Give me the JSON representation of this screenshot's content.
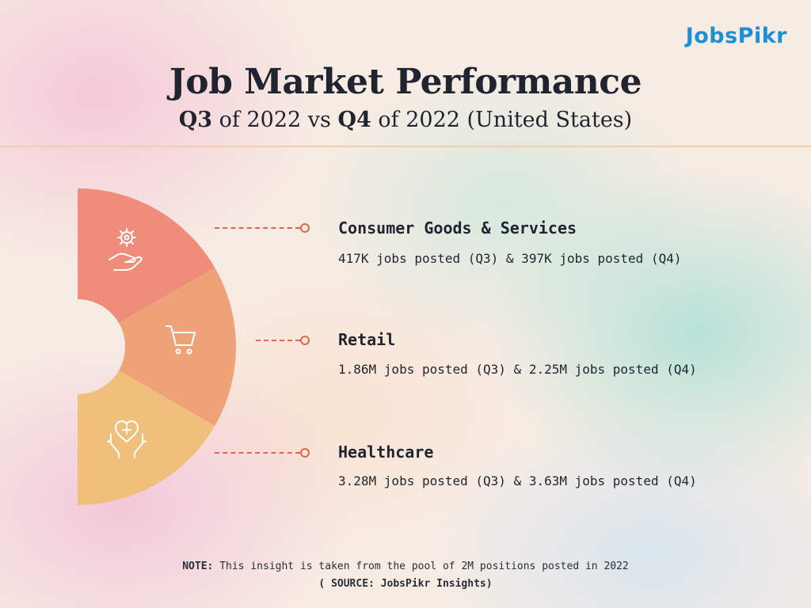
{
  "brand": {
    "logo_text": "JobsPikr",
    "accent": "#1d8fd3"
  },
  "header": {
    "title": "Job Market Performance",
    "subtitle_q3": "Q3",
    "subtitle_mid": " of 2022 vs ",
    "subtitle_q4": "Q4",
    "subtitle_end": " of 2022 (United States)"
  },
  "segments": [
    {
      "icon": "gear-hand-icon",
      "color": "#ef8c7c"
    },
    {
      "icon": "shopping-cart-icon",
      "color": "#efa277"
    },
    {
      "icon": "heart-hands-icon",
      "color": "#f0bf7b"
    }
  ],
  "items": [
    {
      "title": "Consumer Goods & Services",
      "desc": "417K jobs posted (Q3) & 397K jobs posted (Q4)"
    },
    {
      "title": "Retail",
      "desc": "1.86M jobs posted (Q3) & 2.25M jobs posted (Q4)"
    },
    {
      "title": "Healthcare",
      "desc": "3.28M jobs posted (Q3) & 3.63M jobs posted (Q4)"
    }
  ],
  "footer": {
    "note_label": "NOTE:",
    "note_text": " This insight is taken from the pool of 2M positions posted in 2022",
    "source": "( SOURCE: JobsPikr Insights)"
  }
}
